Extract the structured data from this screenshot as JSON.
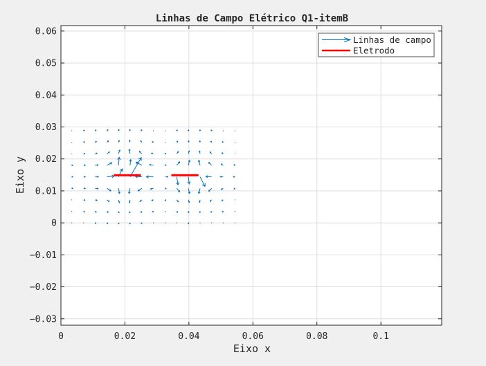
{
  "chart_data": {
    "type": "quiver",
    "title": "Linhas de Campo Elétrico Q1-itemB",
    "xlabel": "Eixo x",
    "ylabel": "Eixo y",
    "xlim": [
      0,
      0.119
    ],
    "ylim": [
      -0.032,
      0.0617
    ],
    "xticks": [
      0,
      0.02,
      0.04,
      0.06,
      0.08,
      0.1
    ],
    "xtick_labels": [
      "0",
      "0.02",
      "0.04",
      "0.06",
      "0.08",
      "0.1"
    ],
    "yticks": [
      -0.03,
      -0.02,
      -0.01,
      0,
      0.01,
      0.02,
      0.03,
      0.04,
      0.05,
      0.06
    ],
    "ytick_labels": [
      "−0.03",
      "−0.02",
      "−0.01",
      "0",
      "0.01",
      "0.02",
      "0.03",
      "0.04",
      "0.05",
      "0.06"
    ],
    "grid": true,
    "legend_position": "top-right",
    "legend": [
      {
        "label": "Linhas de campo",
        "color": "#0072bd",
        "style": "arrow"
      },
      {
        "label": "Eletrodo",
        "color": "#ff0000",
        "style": "line"
      }
    ],
    "electrodes": [
      {
        "x": [
          0.0165,
          0.025
        ],
        "y": [
          0.0149,
          0.0149
        ],
        "color": "#ff0000"
      },
      {
        "x": [
          0.0345,
          0.043
        ],
        "y": [
          0.0149,
          0.0149
        ],
        "color": "#ff0000"
      }
    ],
    "field_color": "#0072bd",
    "vectors": [
      {
        "x": 0.0034,
        "y": 0.0288,
        "u": 0.00016,
        "v": 0.00012
      },
      {
        "x": 0.0071,
        "y": 0.0288,
        "u": 0.00022,
        "v": 0.00018
      },
      {
        "x": 0.0107,
        "y": 0.0288,
        "u": 0.00028,
        "v": 0.00022
      },
      {
        "x": 0.0144,
        "y": 0.0288,
        "u": 0.0003,
        "v": 0.0003
      },
      {
        "x": 0.018,
        "y": 0.0288,
        "u": 0.00012,
        "v": 0.00038
      },
      {
        "x": 0.0216,
        "y": 0.0288,
        "u": -0.0001,
        "v": 0.0004
      },
      {
        "x": 0.0253,
        "y": 0.0288,
        "u": -0.00025,
        "v": 0.0003
      },
      {
        "x": 0.0289,
        "y": 0.0288,
        "u": -0.0002,
        "v": 0.00015
      },
      {
        "x": 0.0326,
        "y": 0.0288,
        "u": 0.0001,
        "v": 0.00012
      },
      {
        "x": 0.0362,
        "y": 0.0288,
        "u": 0.00018,
        "v": 0.00022
      },
      {
        "x": 0.0398,
        "y": 0.0288,
        "u": 0.00012,
        "v": 0.00028
      },
      {
        "x": 0.0435,
        "y": 0.0288,
        "u": -5e-05,
        "v": 0.00028
      },
      {
        "x": 0.0471,
        "y": 0.0288,
        "u": -0.00015,
        "v": 0.00022
      },
      {
        "x": 0.0507,
        "y": 0.0288,
        "u": -0.00015,
        "v": 0.00016
      },
      {
        "x": 0.0544,
        "y": 0.0288,
        "u": -0.0001,
        "v": 0.0001
      },
      {
        "x": 0.0034,
        "y": 0.0252,
        "u": 0.0002,
        "v": 0.0001
      },
      {
        "x": 0.0071,
        "y": 0.0252,
        "u": 0.00028,
        "v": 0.00016
      },
      {
        "x": 0.0107,
        "y": 0.0252,
        "u": 0.00038,
        "v": 0.00025
      },
      {
        "x": 0.0144,
        "y": 0.0252,
        "u": 0.00045,
        "v": 0.00045
      },
      {
        "x": 0.018,
        "y": 0.0252,
        "u": 0.0002,
        "v": 0.0006
      },
      {
        "x": 0.0216,
        "y": 0.0252,
        "u": -0.00015,
        "v": 0.00065
      },
      {
        "x": 0.0253,
        "y": 0.0252,
        "u": -0.0004,
        "v": 0.00045
      },
      {
        "x": 0.0289,
        "y": 0.0252,
        "u": -0.00035,
        "v": 0.0002
      },
      {
        "x": 0.0326,
        "y": 0.0252,
        "u": 0.00015,
        "v": 0.00015
      },
      {
        "x": 0.0362,
        "y": 0.0252,
        "u": 0.0003,
        "v": 0.00035
      },
      {
        "x": 0.0398,
        "y": 0.0252,
        "u": 0.00018,
        "v": 0.00045
      },
      {
        "x": 0.0435,
        "y": 0.0252,
        "u": -0.0001,
        "v": 0.00045
      },
      {
        "x": 0.0471,
        "y": 0.0252,
        "u": -0.00025,
        "v": 0.00032
      },
      {
        "x": 0.0507,
        "y": 0.0252,
        "u": -0.00025,
        "v": 0.0002
      },
      {
        "x": 0.0544,
        "y": 0.0252,
        "u": -0.00015,
        "v": 0.00012
      },
      {
        "x": 0.0034,
        "y": 0.0216,
        "u": 0.00025,
        "v": 5e-05
      },
      {
        "x": 0.0071,
        "y": 0.0216,
        "u": 0.00038,
        "v": 0.0001
      },
      {
        "x": 0.0107,
        "y": 0.0216,
        "u": 0.0006,
        "v": 0.0002
      },
      {
        "x": 0.0144,
        "y": 0.0216,
        "u": 0.0008,
        "v": 0.0006
      },
      {
        "x": 0.018,
        "y": 0.0216,
        "u": 0.0004,
        "v": 0.0012
      },
      {
        "x": 0.0216,
        "y": 0.0216,
        "u": -0.0002,
        "v": 0.0014
      },
      {
        "x": 0.0253,
        "y": 0.0216,
        "u": -0.0008,
        "v": 0.0008
      },
      {
        "x": 0.0289,
        "y": 0.0216,
        "u": -0.0006,
        "v": 0.0002
      },
      {
        "x": 0.0326,
        "y": 0.0216,
        "u": 0.0002,
        "v": 0.0002
      },
      {
        "x": 0.0362,
        "y": 0.0216,
        "u": 0.0005,
        "v": 0.0007
      },
      {
        "x": 0.0398,
        "y": 0.0216,
        "u": 0.0003,
        "v": 0.0009
      },
      {
        "x": 0.0435,
        "y": 0.0216,
        "u": -0.0002,
        "v": 0.0009
      },
      {
        "x": 0.0471,
        "y": 0.0216,
        "u": -0.0005,
        "v": 0.0006
      },
      {
        "x": 0.0507,
        "y": 0.0216,
        "u": -0.0004,
        "v": 0.0003
      },
      {
        "x": 0.0544,
        "y": 0.0216,
        "u": -0.0002,
        "v": 0.00015
      },
      {
        "x": 0.0034,
        "y": 0.018,
        "u": 0.0003,
        "v": 2e-05
      },
      {
        "x": 0.0071,
        "y": 0.018,
        "u": 0.0005,
        "v": 5e-05
      },
      {
        "x": 0.0107,
        "y": 0.018,
        "u": 0.0009,
        "v": 0.0001
      },
      {
        "x": 0.0144,
        "y": 0.018,
        "u": 0.0015,
        "v": 0.0008
      },
      {
        "x": 0.018,
        "y": 0.018,
        "u": 0.0002,
        "v": 0.0025
      },
      {
        "x": 0.0216,
        "y": 0.018,
        "u": 0.0002,
        "v": 0.0018
      },
      {
        "x": 0.0253,
        "y": 0.018,
        "u": -0.0018,
        "v": 0.001
      },
      {
        "x": 0.0289,
        "y": 0.018,
        "u": -0.0012,
        "v": 0.0002
      },
      {
        "x": 0.0326,
        "y": 0.018,
        "u": 0.0003,
        "v": 0.0001
      },
      {
        "x": 0.0362,
        "y": 0.018,
        "u": 0.0009,
        "v": 0.0011
      },
      {
        "x": 0.0398,
        "y": 0.018,
        "u": 0.0004,
        "v": 0.0016
      },
      {
        "x": 0.0435,
        "y": 0.018,
        "u": -0.0004,
        "v": 0.0016
      },
      {
        "x": 0.0471,
        "y": 0.018,
        "u": -0.0009,
        "v": 0.0009
      },
      {
        "x": 0.0507,
        "y": 0.018,
        "u": -0.0006,
        "v": 0.0004
      },
      {
        "x": 0.0544,
        "y": 0.018,
        "u": -0.0003,
        "v": 0.0002
      },
      {
        "x": 0.0034,
        "y": 0.0144,
        "u": 0.0003,
        "v": 0
      },
      {
        "x": 0.0071,
        "y": 0.0144,
        "u": 0.0005,
        "v": 0
      },
      {
        "x": 0.0107,
        "y": 0.0144,
        "u": 0.001,
        "v": 0
      },
      {
        "x": 0.0144,
        "y": 0.0144,
        "u": 0.0022,
        "v": 0.0002
      },
      {
        "x": 0.018,
        "y": 0.0144,
        "u": 0.0012,
        "v": 0.0025
      },
      {
        "x": 0.0216,
        "y": 0.0144,
        "u": 0.0035,
        "v": 0.006
      },
      {
        "x": 0.0253,
        "y": 0.0144,
        "u": -0.002,
        "v": 0.0001
      },
      {
        "x": 0.0289,
        "y": 0.0144,
        "u": -0.0022,
        "v": 0
      },
      {
        "x": 0.0326,
        "y": 0.0144,
        "u": 0.0008,
        "v": 0
      },
      {
        "x": 0.0362,
        "y": 0.0144,
        "u": 0.0004,
        "v": -0.0025
      },
      {
        "x": 0.0398,
        "y": 0.0144,
        "u": 0.0003,
        "v": -0.0022
      },
      {
        "x": 0.0435,
        "y": 0.0144,
        "u": 0.0015,
        "v": -0.003
      },
      {
        "x": 0.0471,
        "y": 0.0144,
        "u": -0.0018,
        "v": 0.0001
      },
      {
        "x": 0.0507,
        "y": 0.0144,
        "u": -0.0009,
        "v": 0
      },
      {
        "x": 0.0544,
        "y": 0.0144,
        "u": -0.0005,
        "v": 0
      },
      {
        "x": 0.0034,
        "y": 0.0108,
        "u": 0.0003,
        "v": -2e-05
      },
      {
        "x": 0.0071,
        "y": 0.0108,
        "u": 0.0005,
        "v": -5e-05
      },
      {
        "x": 0.0107,
        "y": 0.0108,
        "u": 0.0009,
        "v": -0.0001
      },
      {
        "x": 0.0144,
        "y": 0.0108,
        "u": 0.0012,
        "v": -0.0008
      },
      {
        "x": 0.018,
        "y": 0.0108,
        "u": 0.0003,
        "v": -0.0016
      },
      {
        "x": 0.0216,
        "y": 0.0108,
        "u": -0.0003,
        "v": -0.0016
      },
      {
        "x": 0.0253,
        "y": 0.0108,
        "u": -0.0012,
        "v": -0.0008
      },
      {
        "x": 0.0289,
        "y": 0.0108,
        "u": -0.0009,
        "v": -0.0002
      },
      {
        "x": 0.0326,
        "y": 0.0108,
        "u": 0.0003,
        "v": -0.0001
      },
      {
        "x": 0.0362,
        "y": 0.0108,
        "u": 0.0009,
        "v": -0.0011
      },
      {
        "x": 0.0398,
        "y": 0.0108,
        "u": 0.0004,
        "v": -0.0016
      },
      {
        "x": 0.0435,
        "y": 0.0108,
        "u": -0.0004,
        "v": -0.0016
      },
      {
        "x": 0.0471,
        "y": 0.0108,
        "u": -0.0009,
        "v": -0.0009
      },
      {
        "x": 0.0507,
        "y": 0.0108,
        "u": -0.0006,
        "v": -0.0004
      },
      {
        "x": 0.0544,
        "y": 0.0108,
        "u": -0.0003,
        "v": -0.0002
      },
      {
        "x": 0.0034,
        "y": 0.0072,
        "u": 0.00025,
        "v": -5e-05
      },
      {
        "x": 0.0071,
        "y": 0.0072,
        "u": 0.00038,
        "v": -0.0001
      },
      {
        "x": 0.0107,
        "y": 0.0072,
        "u": 0.0006,
        "v": -0.0002
      },
      {
        "x": 0.0144,
        "y": 0.0072,
        "u": 0.0007,
        "v": -0.0005
      },
      {
        "x": 0.018,
        "y": 0.0072,
        "u": 0.0003,
        "v": -0.0009
      },
      {
        "x": 0.0216,
        "y": 0.0072,
        "u": -0.0002,
        "v": -0.0009
      },
      {
        "x": 0.0253,
        "y": 0.0072,
        "u": -0.0006,
        "v": -0.0005
      },
      {
        "x": 0.0289,
        "y": 0.0072,
        "u": -0.0005,
        "v": -0.0002
      },
      {
        "x": 0.0326,
        "y": 0.0072,
        "u": 0.0002,
        "v": -0.0002
      },
      {
        "x": 0.0362,
        "y": 0.0072,
        "u": 0.0005,
        "v": -0.0006
      },
      {
        "x": 0.0398,
        "y": 0.0072,
        "u": 0.0003,
        "v": -0.0008
      },
      {
        "x": 0.0435,
        "y": 0.0072,
        "u": -0.0002,
        "v": -0.0008
      },
      {
        "x": 0.0471,
        "y": 0.0072,
        "u": -0.0005,
        "v": -0.0005
      },
      {
        "x": 0.0507,
        "y": 0.0072,
        "u": -0.0004,
        "v": -0.0003
      },
      {
        "x": 0.0544,
        "y": 0.0072,
        "u": -0.0002,
        "v": -0.00015
      },
      {
        "x": 0.0034,
        "y": 0.0036,
        "u": 0.0002,
        "v": -0.0001
      },
      {
        "x": 0.0071,
        "y": 0.0036,
        "u": 0.00028,
        "v": -0.00016
      },
      {
        "x": 0.0107,
        "y": 0.0036,
        "u": 0.00035,
        "v": -0.00022
      },
      {
        "x": 0.0144,
        "y": 0.0036,
        "u": 0.00035,
        "v": -0.00035
      },
      {
        "x": 0.018,
        "y": 0.0036,
        "u": 0.00015,
        "v": -0.00045
      },
      {
        "x": 0.0216,
        "y": 0.0036,
        "u": -0.00012,
        "v": -0.00048
      },
      {
        "x": 0.0253,
        "y": 0.0036,
        "u": -0.0003,
        "v": -0.00035
      },
      {
        "x": 0.0289,
        "y": 0.0036,
        "u": -0.00028,
        "v": -0.00016
      },
      {
        "x": 0.0326,
        "y": 0.0036,
        "u": 0.00012,
        "v": -0.00015
      },
      {
        "x": 0.0362,
        "y": 0.0036,
        "u": 0.00025,
        "v": -0.00032
      },
      {
        "x": 0.0398,
        "y": 0.0036,
        "u": 0.00015,
        "v": -0.0004
      },
      {
        "x": 0.0435,
        "y": 0.0036,
        "u": -8e-05,
        "v": -0.0004
      },
      {
        "x": 0.0471,
        "y": 0.0036,
        "u": -0.0002,
        "v": -0.0003
      },
      {
        "x": 0.0507,
        "y": 0.0036,
        "u": -0.0002,
        "v": -0.00018
      },
      {
        "x": 0.0544,
        "y": 0.0036,
        "u": -0.00012,
        "v": -0.0001
      },
      {
        "x": 0.0034,
        "y": 0.0,
        "u": 0.00014,
        "v": -0.0001
      },
      {
        "x": 0.0071,
        "y": 0.0,
        "u": 0.0002,
        "v": -0.00014
      },
      {
        "x": 0.0107,
        "y": 0.0,
        "u": 0.00024,
        "v": -0.00018
      },
      {
        "x": 0.0144,
        "y": 0.0,
        "u": 0.00024,
        "v": -0.00024
      },
      {
        "x": 0.018,
        "y": 0.0,
        "u": 0.0001,
        "v": -0.0003
      },
      {
        "x": 0.0216,
        "y": 0.0,
        "u": -0.0001,
        "v": -0.0003
      },
      {
        "x": 0.0253,
        "y": 0.0,
        "u": -0.0002,
        "v": -0.00022
      },
      {
        "x": 0.0289,
        "y": 0.0,
        "u": -0.00018,
        "v": -0.0001
      },
      {
        "x": 0.0326,
        "y": 0.0,
        "u": 0.0001,
        "v": -0.0001
      },
      {
        "x": 0.0362,
        "y": 0.0,
        "u": 0.00016,
        "v": -0.0002
      },
      {
        "x": 0.0398,
        "y": 0.0,
        "u": 0.0001,
        "v": -0.00025
      },
      {
        "x": 0.0435,
        "y": 0.0,
        "u": -5e-05,
        "v": -0.00025
      },
      {
        "x": 0.0471,
        "y": 0.0,
        "u": -0.00014,
        "v": -0.0002
      },
      {
        "x": 0.0507,
        "y": 0.0,
        "u": -0.00014,
        "v": -0.00012
      },
      {
        "x": 0.0544,
        "y": 0.0,
        "u": -0.0001,
        "v": -6e-05
      }
    ]
  }
}
